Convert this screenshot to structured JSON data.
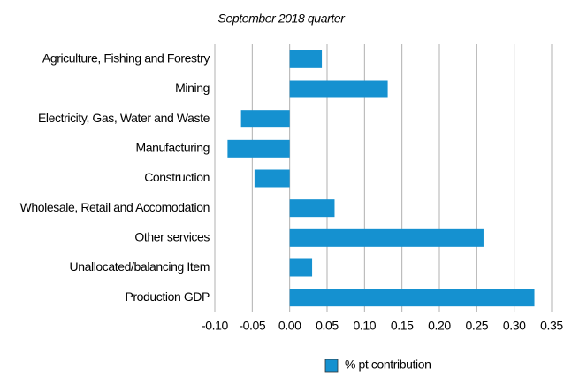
{
  "chart_data": {
    "type": "barh",
    "title": "September 2018 quarter",
    "categories": [
      "Agriculture, Fishing and Forestry",
      "Mining",
      "Electricity, Gas, Water and Waste",
      "Manufacturing",
      "Construction",
      "Wholesale, Retail and Accomodation",
      "Other services",
      "Unallocated/balancing Item",
      "Production GDP"
    ],
    "series": [
      {
        "name": "% pt contribution",
        "color": "#1591d0",
        "values": [
          0.043,
          0.131,
          -0.065,
          -0.083,
          -0.047,
          0.06,
          0.259,
          0.03,
          0.327
        ]
      }
    ],
    "xlim": [
      -0.1,
      0.35
    ],
    "xticks": [
      {
        "value": -0.1,
        "label": "-0.10"
      },
      -0.05,
      {
        "value": 0,
        "label": "0.00"
      },
      0.05,
      {
        "value": 0.1,
        "label": "0.10"
      },
      0.15,
      {
        "value": 0.2,
        "label": "0.20"
      },
      0.25,
      {
        "value": 0.3,
        "label": "0.30"
      },
      0.35
    ],
    "grid": true,
    "legend": "bottom"
  }
}
